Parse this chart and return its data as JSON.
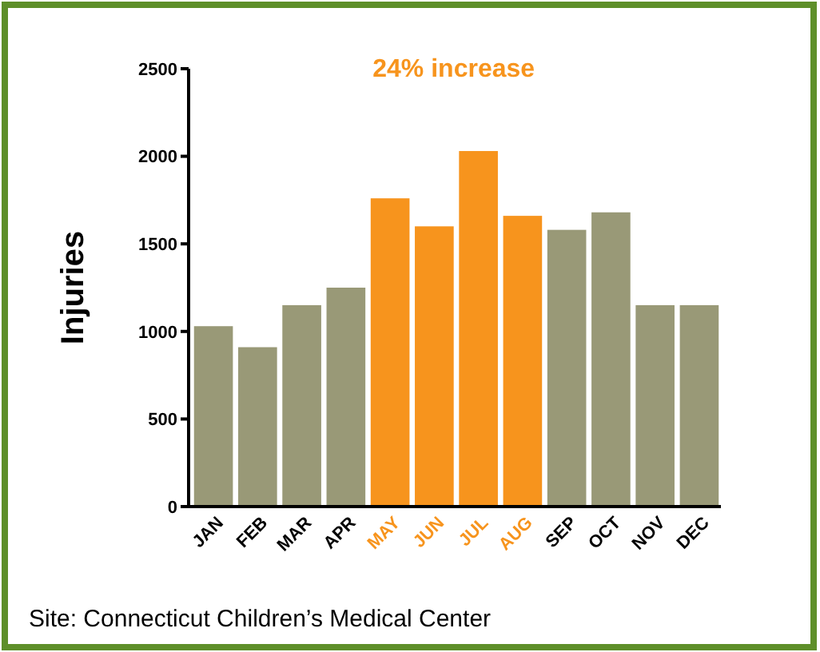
{
  "chart_data": {
    "type": "bar",
    "ylabel": "Injuries",
    "categories": [
      "JAN",
      "FEB",
      "MAR",
      "APR",
      "MAY",
      "JUN",
      "JUL",
      "AUG",
      "SEP",
      "OCT",
      "NOV",
      "DEC"
    ],
    "values": [
      1030,
      910,
      1150,
      1250,
      1760,
      1600,
      2030,
      1660,
      1580,
      1680,
      1150,
      1150
    ],
    "colors": [
      "#999977",
      "#999977",
      "#999977",
      "#999977",
      "#f7941d",
      "#f7941d",
      "#f7941d",
      "#f7941d",
      "#999977",
      "#999977",
      "#999977",
      "#999977"
    ],
    "ylim": [
      0,
      2500
    ],
    "yticks": [
      0,
      500,
      1000,
      1500,
      2000,
      2500
    ],
    "grid": false,
    "annotations": [
      "24% increase",
      "Site: Connecticut Children’s Medical Center"
    ]
  }
}
